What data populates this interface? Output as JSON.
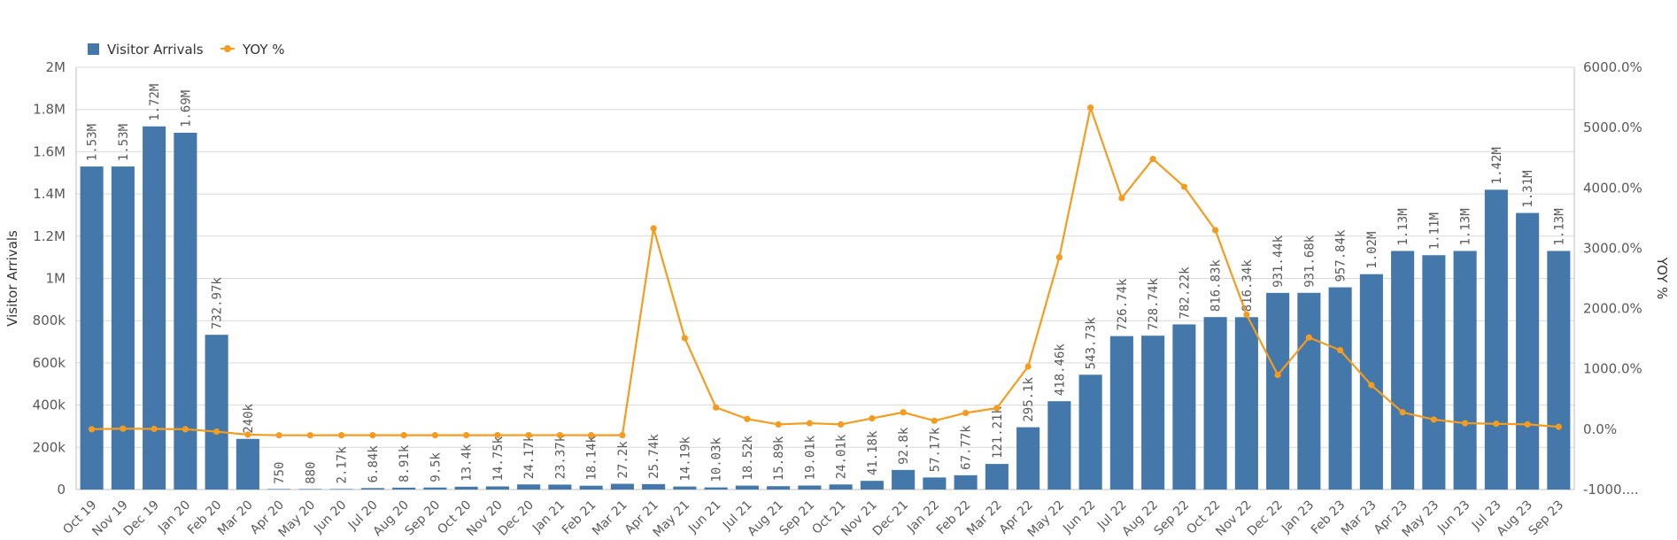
{
  "chart_data": {
    "type": "bar",
    "categories": [
      "Oct 19",
      "Nov 19",
      "Dec 19",
      "Jan 20",
      "Feb 20",
      "Mar 20",
      "Apr 20",
      "May 20",
      "Jun 20",
      "Jul 20",
      "Aug 20",
      "Sep 20",
      "Oct 20",
      "Nov 20",
      "Dec 20",
      "Jan 21",
      "Feb 21",
      "Mar 21",
      "Apr 21",
      "May 21",
      "Jun 21",
      "Jul 21",
      "Aug 21",
      "Sep 21",
      "Oct 21",
      "Nov 21",
      "Dec 21",
      "Jan 22",
      "Feb 22",
      "Mar 22",
      "Apr 22",
      "May 22",
      "Jun 22",
      "Jul 22",
      "Aug 22",
      "Sep 22",
      "Oct 22",
      "Nov 22",
      "Dec 22",
      "Jan 23",
      "Feb 23",
      "Mar 23",
      "Apr 23",
      "May 23",
      "Jun 23",
      "Jul 23",
      "Aug 23",
      "Sep 23"
    ],
    "series": [
      {
        "name": "Visitor Arrivals",
        "type": "bar",
        "axis": "left",
        "color": "#4477aa",
        "values": [
          1530000,
          1530000,
          1720000,
          1690000,
          732970,
          240000,
          750,
          880,
          2170,
          6840,
          8910,
          9500,
          13400,
          14750,
          24170,
          23370,
          18140,
          27200,
          25740,
          14190,
          10030,
          18520,
          15890,
          19010,
          24010,
          41180,
          92800,
          57170,
          67770,
          121210,
          295100,
          418460,
          543730,
          726740,
          728740,
          782220,
          816830,
          816340,
          931440,
          931680,
          957840,
          1020000,
          1130000,
          1110000,
          1130000,
          1420000,
          1310000,
          1130000
        ],
        "labels": [
          "1.53M",
          "1.53M",
          "1.72M",
          "1.69M",
          "732.97k",
          "240k",
          "750",
          "880",
          "2.17k",
          "6.84k",
          "8.91k",
          "9.5k",
          "13.4k",
          "14.75k",
          "24.17k",
          "23.37k",
          "18.14k",
          "27.2k",
          "25.74k",
          "14.19k",
          "10.03k",
          "18.52k",
          "15.89k",
          "19.01k",
          "24.01k",
          "41.18k",
          "92.8k",
          "57.17k",
          "67.77k",
          "121.21k",
          "295.1k",
          "418.46k",
          "543.73k",
          "726.74k",
          "728.74k",
          "782.22k",
          "816.83k",
          "816.34k",
          "931.44k",
          "931.68k",
          "957.84k",
          "1.02M",
          "1.13M",
          "1.11M",
          "1.13M",
          "1.42M",
          "1.31M",
          "1.13M"
        ]
      },
      {
        "name": "YOY %",
        "type": "line",
        "axis": "right",
        "color": "#f39c1f",
        "values": [
          0,
          10,
          5,
          0,
          -40,
          -90,
          -99.9,
          -99.9,
          -99.8,
          -99.6,
          -99.4,
          -99.3,
          -99.1,
          -99.0,
          -98.6,
          -98.6,
          -98.8,
          -98.9,
          3330,
          1510,
          360,
          170,
          80,
          100,
          80,
          180,
          280,
          140,
          270,
          350,
          1040,
          2850,
          5330,
          3830,
          4480,
          4020,
          3300,
          1900,
          900,
          1520,
          1310,
          730,
          280,
          160,
          100,
          90,
          80,
          40
        ]
      }
    ],
    "ylabel": "Visitor Arrivals",
    "ylabel_right": "YOY %",
    "ylim": [
      0,
      2000000
    ],
    "ylim_right": [
      -1000,
      6000
    ],
    "yticks": [
      "0",
      "200k",
      "400k",
      "600k",
      "800k",
      "1M",
      "1.2M",
      "1.4M",
      "1.6M",
      "1.8M",
      "2M"
    ],
    "yticks_right": [
      "-1000....",
      "0.0%",
      "1000.0%",
      "2000.0%",
      "3000.0%",
      "4000.0%",
      "5000.0%",
      "6000.0%"
    ],
    "legend": {
      "placement": "top-left",
      "items": [
        "Visitor Arrivals",
        "YOY %"
      ]
    },
    "grid": true
  }
}
